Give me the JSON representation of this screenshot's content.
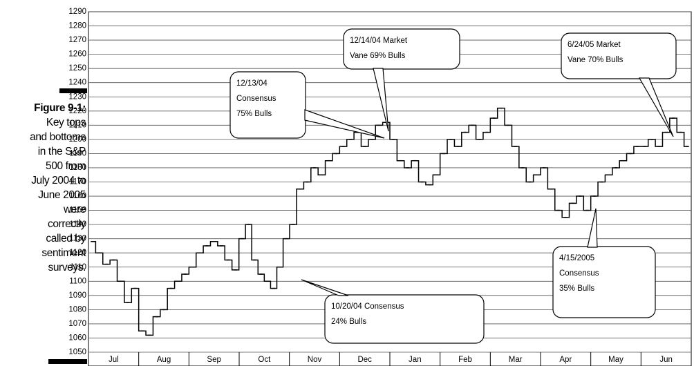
{
  "figure_label": "Figure 9-1:",
  "caption_lines": [
    "Key tops",
    "and bottoms",
    "in the S&P",
    "500 from",
    "July 2004 to",
    "June 2005",
    "were",
    "correctly",
    "called by",
    "sentiment",
    "surveys."
  ],
  "chart_data": {
    "type": "line",
    "categories": [
      "Jul",
      "Aug",
      "Sep",
      "Oct",
      "Nov",
      "Dec",
      "Jan",
      "Feb",
      "Mar",
      "Apr",
      "May",
      "Jun"
    ],
    "series": [
      {
        "color": "#000000",
        "values": [
          [
            1128,
            1120,
            1112,
            1115,
            1100,
            1085,
            1095
          ],
          [
            1065,
            1062,
            1075,
            1080,
            1095,
            1100,
            1105
          ],
          [
            1110,
            1120,
            1125,
            1128,
            1125,
            1115,
            1108
          ],
          [
            1130,
            1140,
            1115,
            1105,
            1100,
            1095,
            1110,
            1130
          ],
          [
            1140,
            1165,
            1170,
            1180,
            1175,
            1185,
            1190
          ],
          [
            1195,
            1200,
            1205,
            1195,
            1200,
            1210,
            1212
          ],
          [
            1200,
            1185,
            1180,
            1185,
            1170,
            1168,
            1175
          ],
          [
            1190,
            1200,
            1195,
            1205,
            1210,
            1200,
            1205
          ],
          [
            1215,
            1222,
            1210,
            1195,
            1180,
            1170,
            1175
          ],
          [
            1180,
            1165,
            1150,
            1145,
            1155,
            1160,
            1150
          ],
          [
            1160,
            1170,
            1175,
            1180,
            1185,
            1190,
            1195
          ],
          [
            1195,
            1200,
            1195,
            1205,
            1215,
            1205,
            1195
          ]
        ]
      }
    ],
    "ylim": [
      1050,
      1290
    ],
    "yticks": [
      1050,
      1060,
      1070,
      1080,
      1090,
      1100,
      1110,
      1120,
      1130,
      1140,
      1150,
      1160,
      1170,
      1180,
      1190,
      1200,
      1210,
      1220,
      1230,
      1240,
      1250,
      1260,
      1270,
      1280,
      1290
    ],
    "grid": true,
    "annotations": [
      {
        "text": [
          "12/14/04 Market",
          "Vane 69% Bulls"
        ]
      },
      {
        "text": [
          "12/13/04",
          "Consensus",
          "75% Bulls"
        ]
      },
      {
        "text": [
          "6/24/05 Market",
          "Vane 70% Bulls"
        ]
      },
      {
        "text": [
          "10/20/04 Consensus",
          "24% Bulls"
        ]
      },
      {
        "text": [
          "4/15/2005",
          "Consensus",
          "35% Bulls"
        ]
      }
    ]
  }
}
